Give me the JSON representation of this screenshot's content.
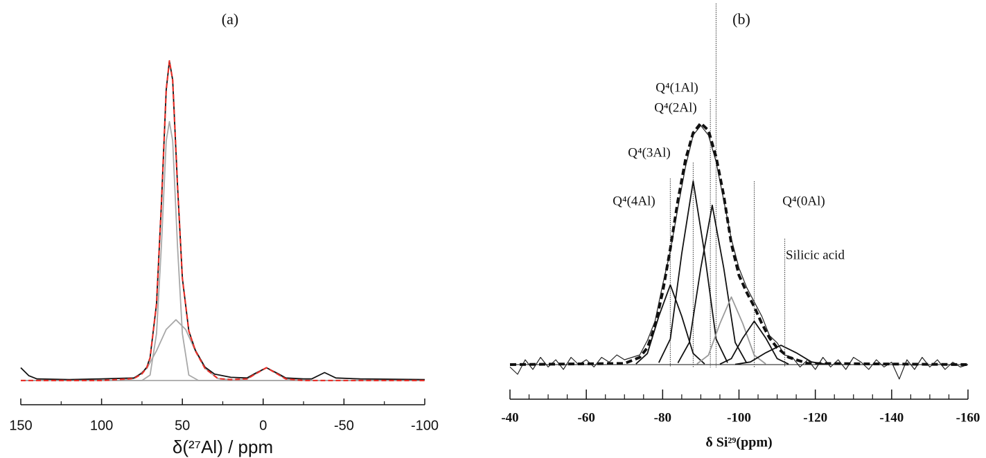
{
  "chart_data": [
    {
      "type": "line",
      "title": "(a)",
      "xlabel": "δ(²⁷Al) / ppm",
      "xlim": [
        150,
        -100
      ],
      "ylim": [
        0,
        100
      ],
      "xticks": [
        150,
        100,
        50,
        0,
        -50,
        -100
      ],
      "xminorticks": [
        125,
        75,
        25,
        -25,
        -75
      ],
      "series": [
        {
          "color": "#a8a8a8",
          "style": "solid",
          "x": [
            150,
            80,
            75,
            70,
            66,
            63,
            60,
            58,
            56,
            53,
            50,
            46,
            40,
            -100
          ],
          "values": [
            0,
            0,
            0,
            1.7,
            14.7,
            42,
            75,
            81,
            75,
            42,
            14.7,
            1.7,
            0,
            0
          ]
        },
        {
          "color": "#a8a8a8",
          "style": "solid",
          "x": [
            150,
            90,
            80,
            72,
            66,
            60,
            54,
            48,
            42,
            36,
            28,
            15,
            -100
          ],
          "values": [
            0,
            0,
            0.6,
            3.8,
            9.3,
            16,
            19,
            16,
            9.3,
            3.8,
            0.6,
            0,
            0
          ]
        },
        {
          "color": "#a8a8a8",
          "style": "solid",
          "x": [
            150,
            20,
            10,
            5,
            -2,
            -9,
            -14,
            -25,
            -100
          ],
          "values": [
            0,
            0,
            0.5,
            2,
            4,
            2,
            0.5,
            0,
            0
          ]
        },
        {
          "color": "#111111",
          "style": "solid",
          "x": [
            150,
            145,
            140,
            120,
            100,
            80,
            75,
            72,
            70,
            66,
            63,
            60,
            58,
            56,
            53,
            50,
            46,
            42,
            36,
            30,
            20,
            10,
            5,
            -2,
            -9,
            -14,
            -25,
            -30,
            -38,
            -45,
            -60,
            -100
          ],
          "values": [
            4,
            1.5,
            0.5,
            0.3,
            0.5,
            0.8,
            2.3,
            4.2,
            7.2,
            24,
            55,
            91,
            100,
            94,
            61,
            32,
            15.5,
            9.5,
            4.2,
            2,
            1,
            0.8,
            2.2,
            4,
            2.2,
            0.8,
            0.5,
            0.5,
            2.5,
            0.8,
            0.5,
            0.3
          ]
        },
        {
          "color": "#e8312a",
          "style": "dashed",
          "x": [
            150,
            100,
            80,
            75,
            72,
            70,
            66,
            63,
            60,
            58,
            56,
            53,
            50,
            46,
            42,
            36,
            28,
            20,
            10,
            5,
            -2,
            -9,
            -14,
            -25,
            -100
          ],
          "values": [
            0,
            0,
            0.6,
            2.1,
            4,
            7,
            24,
            55,
            91,
            100,
            94,
            61,
            32,
            15.5,
            9.3,
            3.8,
            0.6,
            0.3,
            0.5,
            2,
            4,
            2,
            0.5,
            0,
            0
          ]
        }
      ]
    },
    {
      "type": "line",
      "title": "(b)",
      "xlabel": "δ Si²⁹(ppm)",
      "xlim": [
        -40,
        -160
      ],
      "ylim": [
        0,
        100
      ],
      "xticks": [
        -40,
        -60,
        -80,
        -100,
        -120,
        -140,
        -160
      ],
      "xminorticks": [
        -45,
        -50,
        -55,
        -65,
        -70,
        -75,
        -85,
        -90,
        -95,
        -105,
        -110,
        -115,
        -125,
        -130,
        -135,
        -145,
        -150,
        -155
      ],
      "annotations": [
        {
          "x": -94,
          "label": "Q⁴(1Al)"
        },
        {
          "x": -92.5,
          "label": "Q⁴(2Al)"
        },
        {
          "x": -88,
          "label": "Q⁴(3Al)"
        },
        {
          "x": -82,
          "label": "Q⁴(4Al)"
        },
        {
          "x": -104,
          "label": "Q⁴(0Al)"
        },
        {
          "x": -112,
          "label": "Silicic acid"
        }
      ],
      "series": [
        {
          "color": "#111111",
          "style": "solid",
          "x": [
            -73,
            -76,
            -79,
            -82,
            -85,
            -88,
            -91
          ],
          "values": [
            0.3,
            4.6,
            20,
            33,
            20,
            4.6,
            0.3
          ]
        },
        {
          "color": "#111111",
          "style": "solid",
          "x": [
            -79,
            -82,
            -85,
            -88,
            -91,
            -94,
            -97
          ],
          "values": [
            0.8,
            10.6,
            46,
            76,
            46,
            10.6,
            0.8
          ]
        },
        {
          "color": "#111111",
          "style": "solid",
          "x": [
            -84,
            -87,
            -90,
            -93,
            -96,
            -99,
            -102
          ],
          "values": [
            0.7,
            9.2,
            40,
            66,
            40,
            9.2,
            0.7
          ]
        },
        {
          "color": "#999999",
          "style": "solid",
          "x": [
            -89,
            -92,
            -95,
            -98,
            -101,
            -104,
            -107
          ],
          "values": [
            0.3,
            3.9,
            17,
            28,
            17,
            3.9,
            0.3
          ]
        },
        {
          "color": "#111111",
          "style": "solid",
          "x": [
            -95,
            -98,
            -101,
            -104,
            -107,
            -110,
            -113
          ],
          "values": [
            0.2,
            2.5,
            11,
            18,
            11,
            2.5,
            0.2
          ]
        },
        {
          "color": "#111111",
          "style": "solid",
          "x": [
            -99,
            -103,
            -107,
            -111,
            -115,
            -119,
            -123
          ],
          "values": [
            0.1,
            1.1,
            4.9,
            8,
            4.9,
            1.1,
            0.1
          ]
        },
        {
          "color": "#222222",
          "style": "thin",
          "x": [
            -40,
            -42,
            -44,
            -46,
            -48,
            -50,
            -52,
            -54,
            -56,
            -58,
            -60,
            -62,
            -64,
            -66,
            -68,
            -70,
            -72,
            -74,
            -76,
            -78,
            -80,
            -82,
            -84,
            -86,
            -88,
            -90,
            -92,
            -94,
            -96,
            -98,
            -100,
            -102,
            -104,
            -106,
            -108,
            -110,
            -112,
            -114,
            -116,
            -118,
            -120,
            -122,
            -124,
            -126,
            -128,
            -130,
            -132,
            -134,
            -136,
            -138,
            -140,
            -142,
            -144,
            -146,
            -148,
            -150,
            -152,
            -154,
            -156,
            -158,
            -160
          ],
          "values": [
            -1,
            -4,
            2,
            -2,
            3,
            -1,
            2,
            -2,
            3,
            0,
            2,
            -1,
            3,
            1,
            4,
            2,
            3,
            4,
            10,
            18,
            33,
            47,
            65,
            82,
            95,
            99,
            95,
            84,
            68,
            52,
            40,
            32,
            26,
            20,
            12,
            9,
            4,
            3,
            -1,
            2,
            -2,
            3,
            -1,
            2,
            -2,
            3,
            1,
            -2,
            2,
            -1,
            1,
            -6,
            2,
            -2,
            3,
            -1,
            2,
            -2,
            1,
            -1,
            0
          ]
        },
        {
          "color": "#111111",
          "style": "dashed",
          "x": [
            -40,
            -70,
            -74,
            -76,
            -78,
            -80,
            -82,
            -84,
            -86,
            -88,
            -90,
            -92,
            -94,
            -96,
            -98,
            -100,
            -102,
            -104,
            -106,
            -108,
            -110,
            -113,
            -118,
            -160
          ],
          "values": [
            0,
            0.5,
            3,
            7,
            16,
            30,
            48,
            68,
            85,
            96,
            100,
            97,
            86,
            70,
            50,
            37,
            30,
            24,
            17,
            11,
            7,
            3,
            0.5,
            0
          ]
        }
      ]
    }
  ]
}
